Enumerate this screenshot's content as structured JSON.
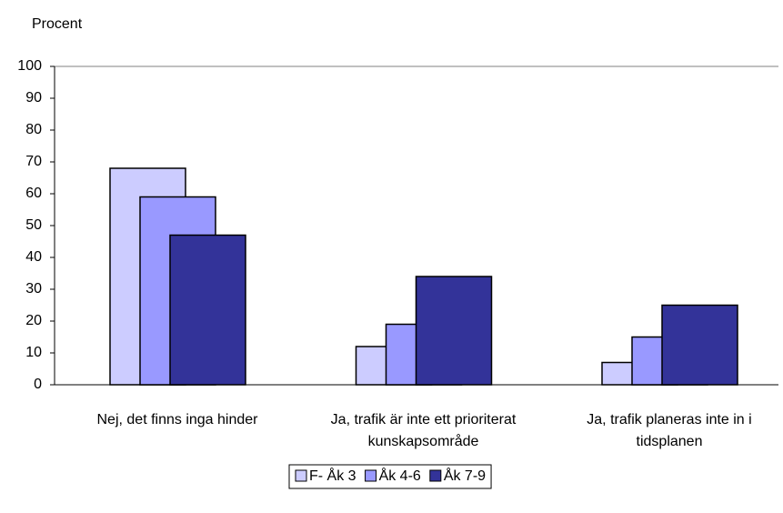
{
  "chart_data": {
    "type": "bar",
    "y_label": "Procent",
    "categories": [
      "Nej, det finns inga hinder",
      "Ja, trafik är inte ett prioriterat kunskapsområde",
      "Ja, trafik planeras inte in i tidsplanen"
    ],
    "series": [
      {
        "name": "F- Åk 3",
        "color": "#ccccff",
        "values": [
          68,
          12,
          7
        ]
      },
      {
        "name": "Åk 4-6",
        "color": "#9999ff",
        "values": [
          59,
          19,
          15
        ]
      },
      {
        "name": "Åk 7-9",
        "color": "#333399",
        "values": [
          47,
          34,
          25
        ]
      }
    ],
    "ylim": [
      0,
      100
    ],
    "yticks": [
      0,
      10,
      20,
      30,
      40,
      50,
      60,
      70,
      80,
      90,
      100
    ],
    "legend": "bottom"
  }
}
